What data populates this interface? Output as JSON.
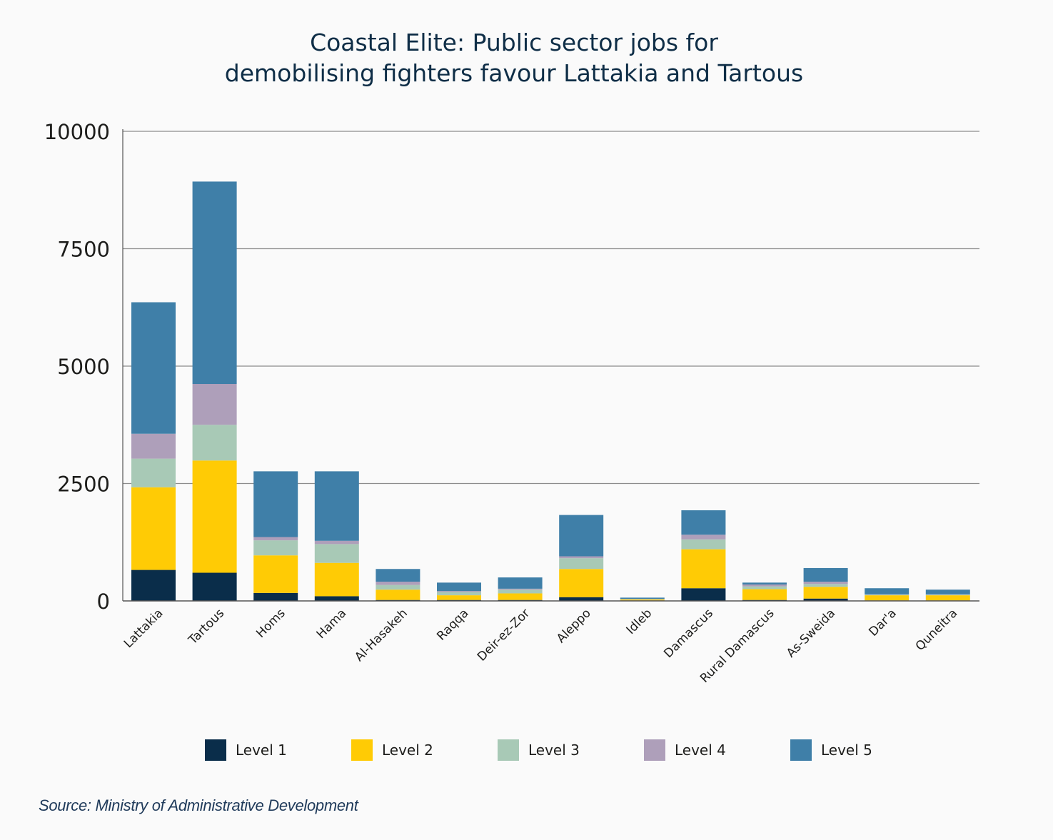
{
  "chart_data": {
    "type": "bar",
    "stacked": true,
    "title_lines": [
      "Coastal Elite: Public sector jobs for",
      "demobilising fighters favour Lattakia and Tartous"
    ],
    "categories": [
      "Lattakia",
      "Tartous",
      "Homs",
      "Hama",
      "Al-Hasakeh",
      "Raqqa",
      "Deir-ez-Zor",
      "Aleppo",
      "Idleb",
      "Damascus",
      "Rural Damascus",
      "As-Sweida",
      "Dar'a",
      "Quneitra"
    ],
    "ylim": [
      0,
      10000
    ],
    "yticks": [
      0,
      2500,
      5000,
      7500,
      10000
    ],
    "grid": true,
    "legend_position": "bottom",
    "series": [
      {
        "name": "Level 1",
        "color": "#0a2d4a",
        "values": [
          660,
          600,
          170,
          100,
          20,
          20,
          20,
          80,
          10,
          270,
          20,
          50,
          10,
          10
        ]
      },
      {
        "name": "Level 2",
        "color": "#ffcb05",
        "values": [
          1760,
          2390,
          800,
          710,
          220,
          100,
          140,
          600,
          20,
          830,
          230,
          250,
          110,
          110
        ]
      },
      {
        "name": "Level 3",
        "color": "#a8c9b6",
        "values": [
          610,
          760,
          320,
          400,
          100,
          70,
          80,
          230,
          10,
          210,
          60,
          60,
          15,
          15
        ]
      },
      {
        "name": "Level 4",
        "color": "#ae9fba",
        "values": [
          530,
          870,
          70,
          70,
          70,
          20,
          20,
          40,
          5,
          100,
          40,
          50,
          5,
          5
        ]
      },
      {
        "name": "Level 5",
        "color": "#3f7fa8",
        "values": [
          2800,
          4310,
          1400,
          1480,
          270,
          180,
          240,
          880,
          25,
          520,
          40,
          290,
          130,
          100
        ]
      }
    ]
  },
  "source": "Source: Ministry of Administrative Development"
}
